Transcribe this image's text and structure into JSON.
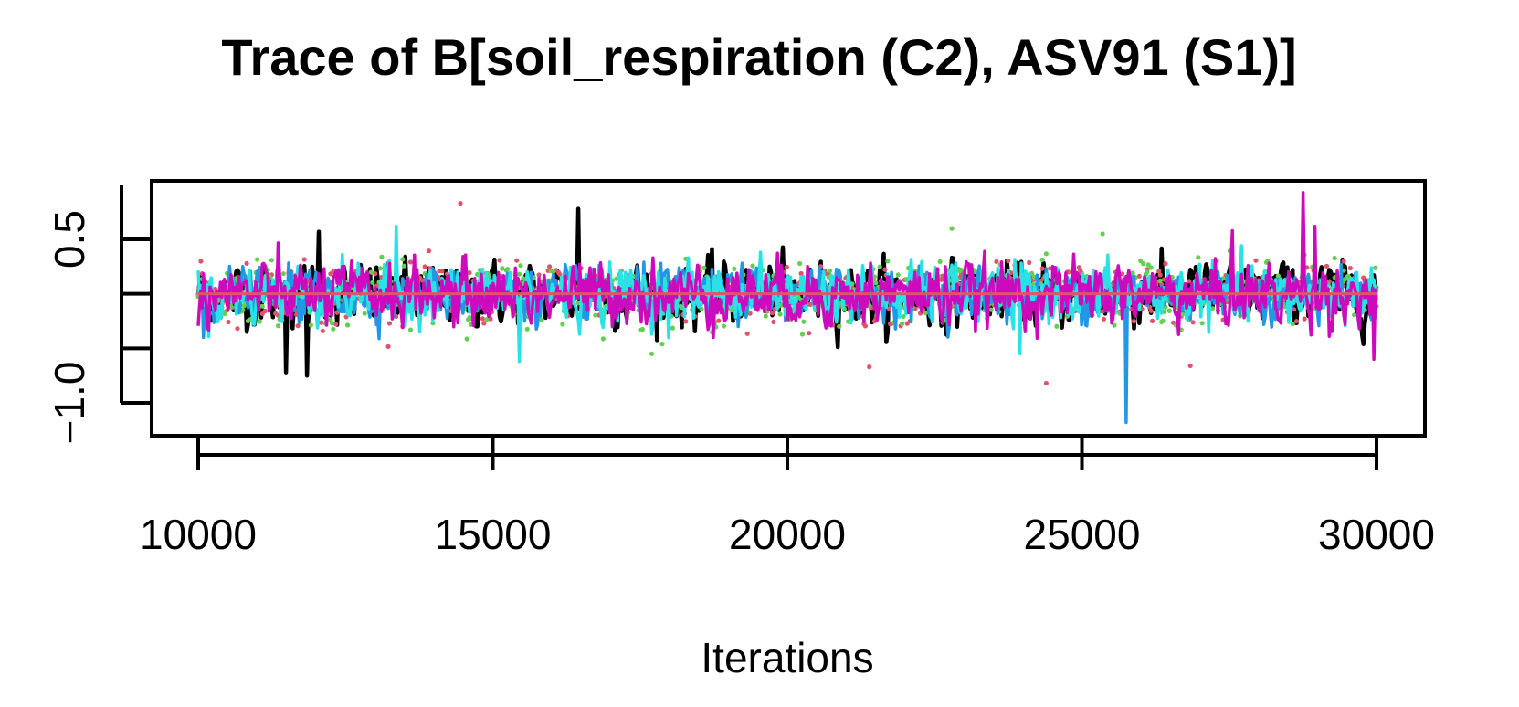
{
  "chart_data": {
    "type": "line",
    "title": "Trace of B[soil_respiration (C2), ASV91 (S1)]",
    "xlabel": "Iterations",
    "ylabel": "",
    "xlim": [
      10000,
      30000
    ],
    "ylim": [
      -1.0,
      0.5
    ],
    "x_ticks": [
      10000,
      15000,
      20000,
      25000,
      30000
    ],
    "x_tick_labels": [
      "10000",
      "15000",
      "20000",
      "25000",
      "30000"
    ],
    "y_ticks": [
      -1.0,
      -0.5,
      0.0,
      0.5
    ],
    "y_tick_labels": [
      "−1.0",
      "",
      "",
      "0.5"
    ],
    "grid": false,
    "legend": "none",
    "series": [
      {
        "color": "#000000",
        "mean": 0.0,
        "sd": 0.13,
        "style": "line",
        "spikes": [
          [
            11500,
            -0.72
          ],
          [
            11850,
            -0.75
          ],
          [
            12050,
            0.57
          ],
          [
            16450,
            0.78
          ]
        ]
      },
      {
        "color": "#DF536B",
        "mean": 0.0,
        "sd": 0.12,
        "style": "dots",
        "spikes": [
          [
            14450,
            0.83
          ],
          [
            21400,
            -0.67
          ],
          [
            24400,
            -0.82
          ],
          [
            26850,
            -0.66
          ]
        ]
      },
      {
        "color": "#61D04F",
        "mean": 0.0,
        "sd": 0.12,
        "style": "dots",
        "spikes": [
          [
            22800,
            0.6
          ],
          [
            25350,
            0.55
          ],
          [
            17700,
            -0.55
          ]
        ]
      },
      {
        "color": "#2297E6",
        "mean": 0.0,
        "sd": 0.11,
        "style": "line",
        "spikes": [
          [
            25750,
            -1.18
          ],
          [
            10100,
            -0.4
          ]
        ]
      },
      {
        "color": "#28E2E5",
        "mean": 0.0,
        "sd": 0.12,
        "style": "line",
        "spikes": [
          [
            13350,
            0.62
          ],
          [
            15450,
            -0.62
          ],
          [
            23950,
            -0.55
          ]
        ]
      },
      {
        "color": "#CD0BBC",
        "mean": 0.0,
        "sd": 0.13,
        "style": "line",
        "spikes": [
          [
            28750,
            0.93
          ],
          [
            28950,
            0.62
          ],
          [
            27550,
            0.58
          ],
          [
            29950,
            -0.6
          ]
        ]
      }
    ],
    "mean_line": {
      "color": "#DF536B",
      "value": 0.0
    }
  }
}
